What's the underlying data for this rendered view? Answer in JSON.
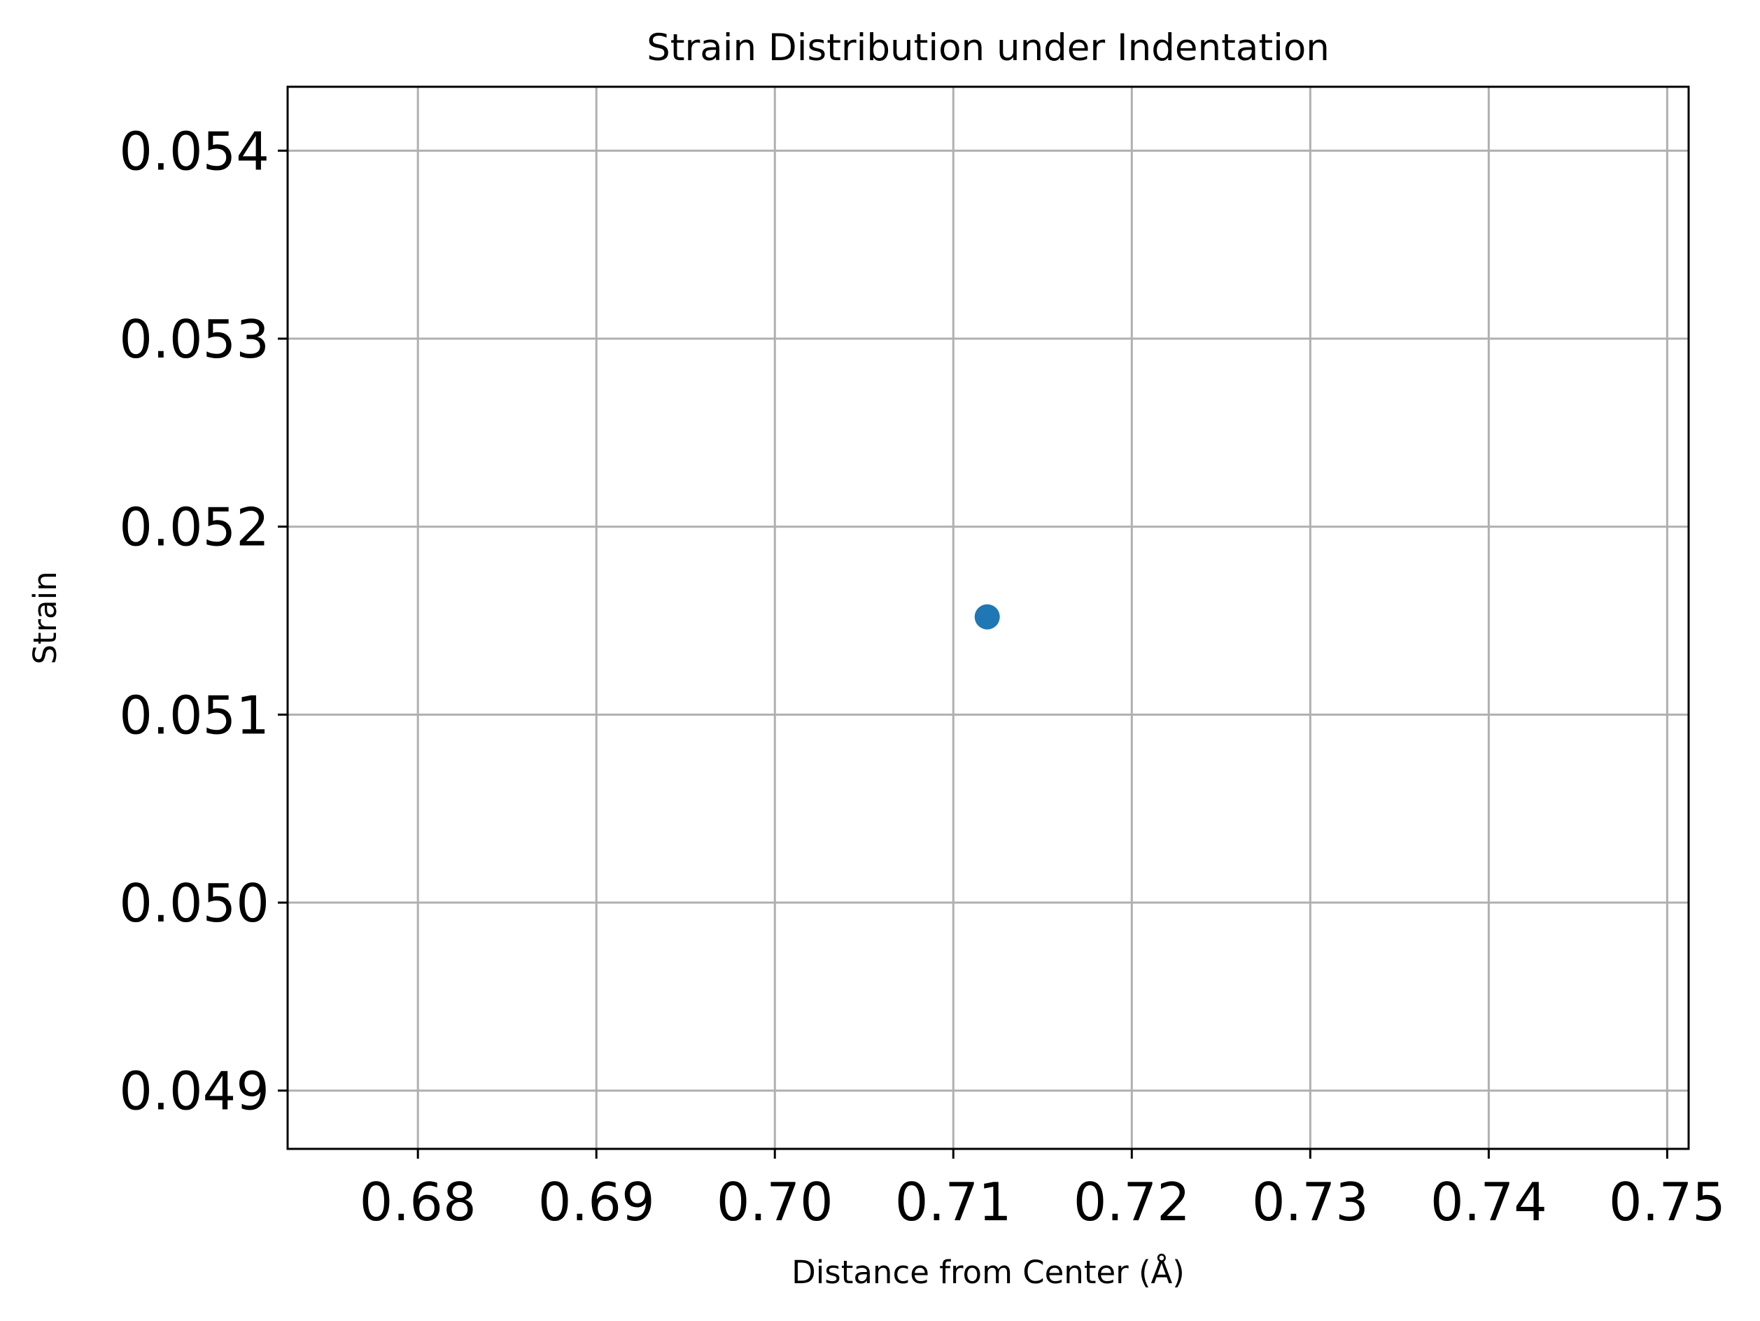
{
  "chart_data": {
    "type": "scatter",
    "title": "Strain Distribution under Indentation",
    "xlabel": "Distance from Center (Å)",
    "ylabel": "Strain",
    "xlim": [
      0.6727,
      0.7512
    ],
    "ylim": [
      0.04869,
      0.05434
    ],
    "x_ticks": [
      0.68,
      0.69,
      0.7,
      0.71,
      0.72,
      0.73,
      0.74,
      0.75
    ],
    "x_tick_labels": [
      "0.68",
      "0.69",
      "0.70",
      "0.71",
      "0.72",
      "0.73",
      "0.74",
      "0.75"
    ],
    "y_ticks": [
      0.049,
      0.05,
      0.051,
      0.052,
      0.053,
      0.054
    ],
    "y_tick_labels": [
      "0.049",
      "0.050",
      "0.051",
      "0.052",
      "0.053",
      "0.054"
    ],
    "grid": true,
    "series": [
      {
        "color": "#1f77b4",
        "points": [
          {
            "x": 0.7119,
            "y": 0.05152
          }
        ]
      }
    ]
  }
}
